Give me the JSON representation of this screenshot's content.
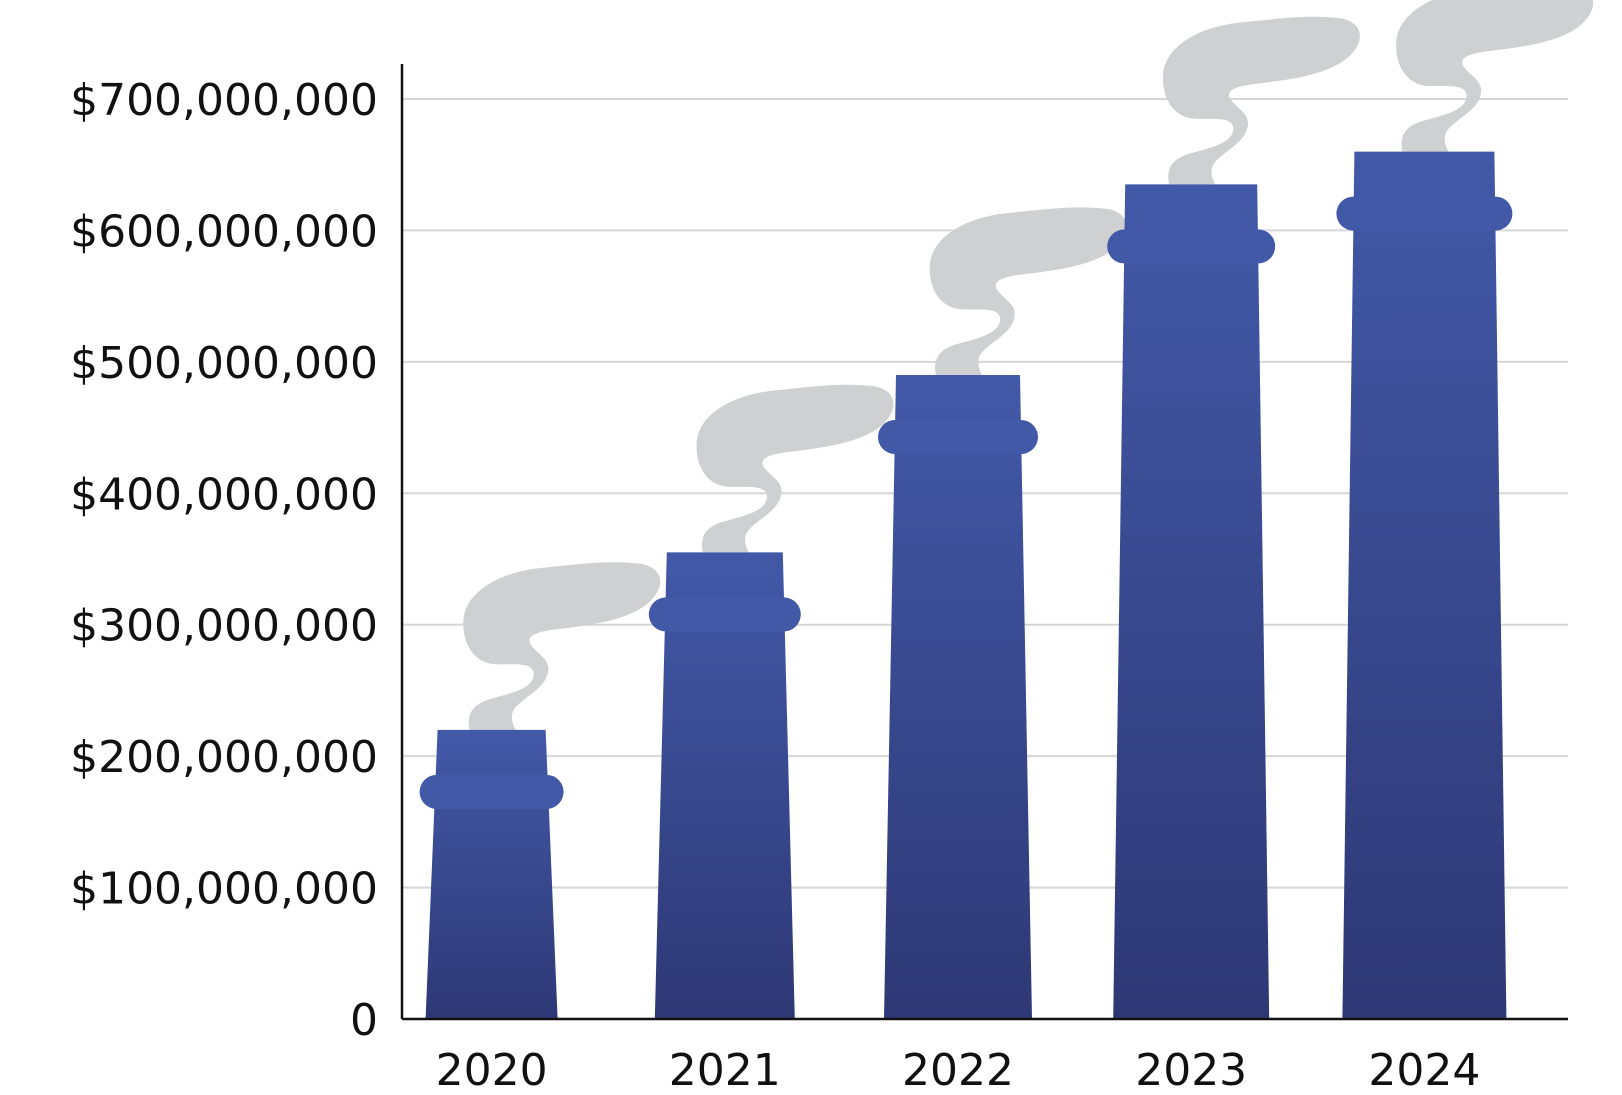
{
  "chart_data": {
    "type": "bar",
    "title": "",
    "xlabel": "",
    "ylabel": "",
    "categories": [
      "2020",
      "2021",
      "2022",
      "2023",
      "2024"
    ],
    "values": [
      220000000,
      355000000,
      490000000,
      635000000,
      660000000
    ],
    "ylim": [
      0,
      700000000
    ],
    "y_ticks": [
      0,
      100000000,
      200000000,
      300000000,
      400000000,
      500000000,
      600000000,
      700000000
    ],
    "y_tick_labels": [
      "0",
      "$100,000,000",
      "$200,000,000",
      "$300,000,000",
      "$400,000,000",
      "$500,000,000",
      "$600,000,000",
      "$700,000,000"
    ],
    "grid": true,
    "legend": "none",
    "bar_style": "smokestack",
    "colors": {
      "bar_top": "#4259a8",
      "bar_bottom": "#2e3875",
      "smoke": "#cfd0d2",
      "grid": "#d6d6d6",
      "axis": "#111111",
      "text": "#111111"
    }
  }
}
